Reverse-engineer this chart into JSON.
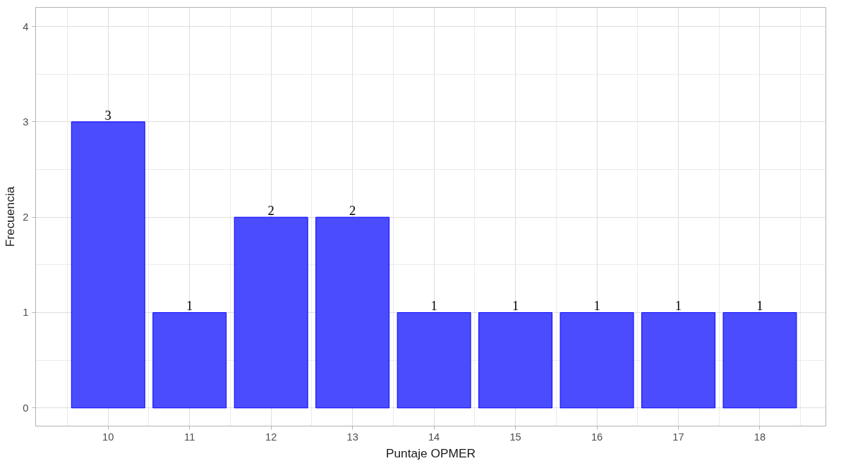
{
  "chart_data": {
    "type": "bar",
    "xlabel": "Puntaje OPMER",
    "ylabel": "Frecuencia",
    "x": [
      10,
      11,
      12,
      13,
      14,
      15,
      16,
      17,
      18
    ],
    "values": [
      3,
      1,
      2,
      2,
      1,
      1,
      1,
      1,
      1
    ],
    "color": "#4c4cff",
    "data_labels": true,
    "grid": true,
    "xlim": [
      9.11,
      18.81
    ],
    "xticks": [
      10,
      11,
      12,
      13,
      14,
      15,
      16,
      17,
      18
    ],
    "ylim": [
      -0.19,
      4.2
    ],
    "yticks": [
      0,
      1,
      2,
      3,
      4
    ]
  }
}
